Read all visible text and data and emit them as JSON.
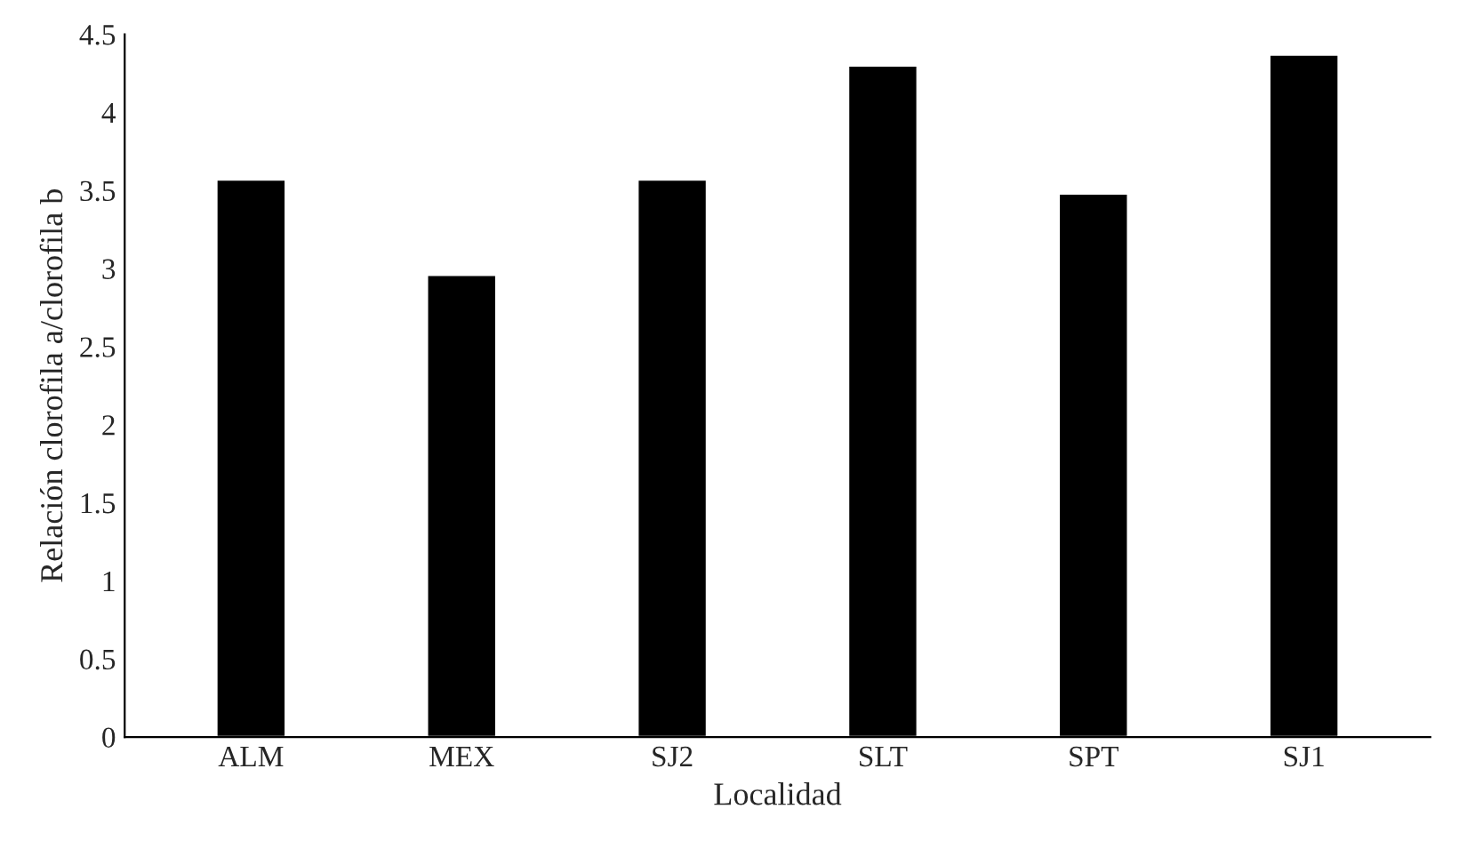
{
  "chart_data": {
    "type": "bar",
    "xlabel": "Localidad",
    "ylabel": "Relación clorofila a/clorofila b",
    "categories": [
      "ALM",
      "MEX",
      "SJ2",
      "SLT",
      "SPT",
      "SJ1"
    ],
    "values": [
      3.57,
      2.96,
      3.57,
      4.3,
      3.48,
      4.37
    ],
    "color": "#000000",
    "ylim": [
      0,
      4.5
    ],
    "yticks": [
      0,
      0.5,
      1,
      1.5,
      2,
      2.5,
      3,
      3.5,
      4,
      4.5
    ],
    "grid": false
  }
}
